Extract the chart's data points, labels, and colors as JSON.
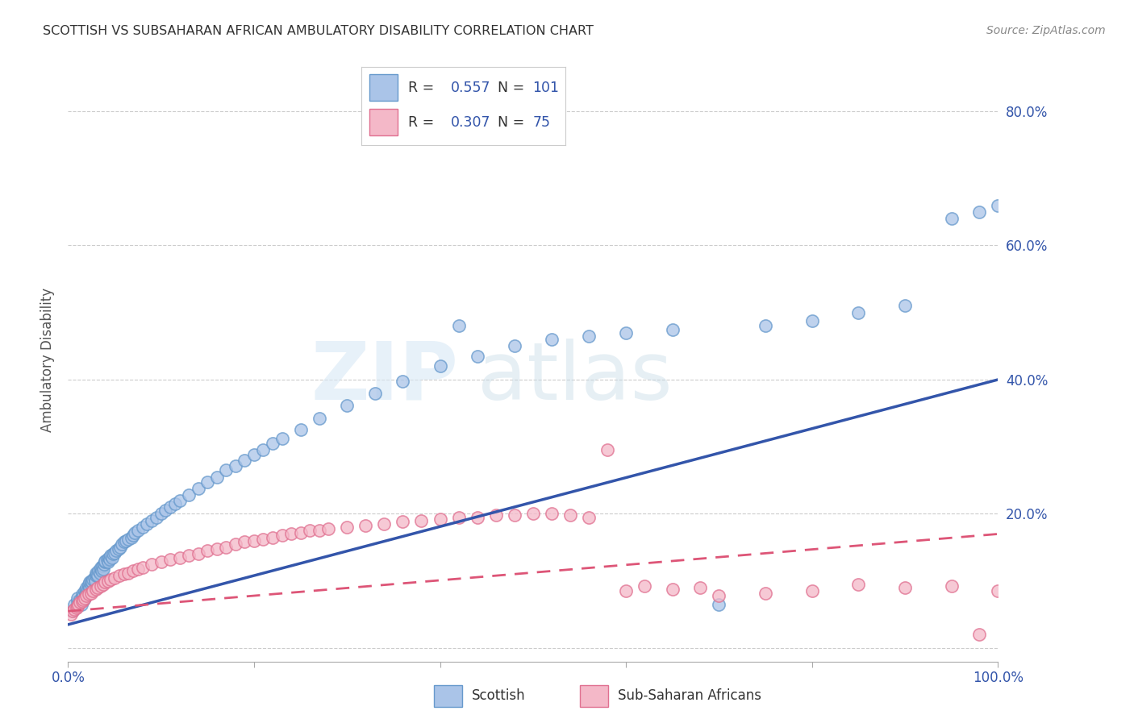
{
  "title": "SCOTTISH VS SUBSAHARAN AFRICAN AMBULATORY DISABILITY CORRELATION CHART",
  "source": "Source: ZipAtlas.com",
  "ylabel": "Ambulatory Disability",
  "xlim": [
    0,
    1.0
  ],
  "ylim": [
    -0.02,
    0.88
  ],
  "x_ticks": [
    0.0,
    0.2,
    0.4,
    0.6,
    0.8,
    1.0
  ],
  "x_tick_labels": [
    "0.0%",
    "",
    "",
    "",
    "",
    "100.0%"
  ],
  "y_ticks": [
    0.0,
    0.2,
    0.4,
    0.6,
    0.8
  ],
  "y_tick_labels": [
    "",
    "20.0%",
    "40.0%",
    "60.0%",
    "80.0%"
  ],
  "scottish_color": "#aac4e8",
  "scottish_edge": "#6699cc",
  "subsaharan_color": "#f4b8c8",
  "subsaharan_edge": "#e07090",
  "line_blue": "#3355aa",
  "line_pink": "#dd5577",
  "R_scottish": "0.557",
  "N_scottish": "101",
  "R_subsaharan": "0.307",
  "N_subsaharan": "75",
  "legend_text_color": "#3355aa",
  "label_color": "#3355aa",
  "scottish_line_x": [
    0.0,
    1.0
  ],
  "scottish_line_y": [
    0.035,
    0.4
  ],
  "subsaharan_line_x": [
    0.0,
    1.0
  ],
  "subsaharan_line_y": [
    0.055,
    0.17
  ],
  "watermark_zip": "ZIP",
  "watermark_atlas": "atlas",
  "scottish_x": [
    0.005,
    0.007,
    0.008,
    0.01,
    0.01,
    0.012,
    0.013,
    0.014,
    0.015,
    0.015,
    0.016,
    0.017,
    0.018,
    0.019,
    0.02,
    0.02,
    0.021,
    0.022,
    0.022,
    0.023,
    0.023,
    0.025,
    0.025,
    0.026,
    0.027,
    0.028,
    0.029,
    0.03,
    0.03,
    0.031,
    0.032,
    0.033,
    0.034,
    0.035,
    0.035,
    0.036,
    0.037,
    0.038,
    0.039,
    0.04,
    0.04,
    0.042,
    0.043,
    0.044,
    0.045,
    0.046,
    0.047,
    0.048,
    0.05,
    0.052,
    0.054,
    0.056,
    0.058,
    0.06,
    0.062,
    0.065,
    0.068,
    0.07,
    0.072,
    0.075,
    0.08,
    0.085,
    0.09,
    0.095,
    0.1,
    0.105,
    0.11,
    0.115,
    0.12,
    0.13,
    0.14,
    0.15,
    0.16,
    0.17,
    0.18,
    0.19,
    0.2,
    0.21,
    0.22,
    0.23,
    0.25,
    0.27,
    0.3,
    0.33,
    0.36,
    0.4,
    0.44,
    0.48,
    0.52,
    0.56,
    0.6,
    0.65,
    0.7,
    0.75,
    0.8,
    0.85,
    0.9,
    0.95,
    0.98,
    1.0,
    0.42
  ],
  "scottish_y": [
    0.055,
    0.065,
    0.06,
    0.07,
    0.075,
    0.068,
    0.072,
    0.065,
    0.08,
    0.075,
    0.078,
    0.072,
    0.085,
    0.08,
    0.085,
    0.09,
    0.088,
    0.092,
    0.095,
    0.09,
    0.098,
    0.095,
    0.1,
    0.098,
    0.102,
    0.105,
    0.1,
    0.108,
    0.112,
    0.11,
    0.108,
    0.115,
    0.112,
    0.118,
    0.12,
    0.115,
    0.122,
    0.118,
    0.125,
    0.128,
    0.13,
    0.132,
    0.128,
    0.135,
    0.132,
    0.138,
    0.135,
    0.14,
    0.142,
    0.145,
    0.148,
    0.15,
    0.155,
    0.158,
    0.16,
    0.162,
    0.165,
    0.168,
    0.172,
    0.175,
    0.18,
    0.185,
    0.19,
    0.195,
    0.2,
    0.205,
    0.21,
    0.215,
    0.22,
    0.228,
    0.238,
    0.248,
    0.255,
    0.265,
    0.272,
    0.28,
    0.288,
    0.295,
    0.305,
    0.312,
    0.325,
    0.342,
    0.362,
    0.38,
    0.398,
    0.42,
    0.435,
    0.45,
    0.46,
    0.465,
    0.47,
    0.475,
    0.065,
    0.48,
    0.488,
    0.5,
    0.51,
    0.64,
    0.65,
    0.66,
    0.48
  ],
  "subsaharan_x": [
    0.003,
    0.005,
    0.007,
    0.009,
    0.01,
    0.011,
    0.013,
    0.015,
    0.016,
    0.018,
    0.02,
    0.022,
    0.025,
    0.027,
    0.03,
    0.032,
    0.035,
    0.038,
    0.04,
    0.043,
    0.046,
    0.05,
    0.055,
    0.06,
    0.065,
    0.07,
    0.075,
    0.08,
    0.09,
    0.1,
    0.11,
    0.12,
    0.13,
    0.14,
    0.15,
    0.16,
    0.17,
    0.18,
    0.19,
    0.2,
    0.21,
    0.22,
    0.23,
    0.24,
    0.25,
    0.26,
    0.27,
    0.28,
    0.3,
    0.32,
    0.34,
    0.36,
    0.38,
    0.4,
    0.42,
    0.44,
    0.46,
    0.48,
    0.5,
    0.52,
    0.54,
    0.56,
    0.58,
    0.6,
    0.62,
    0.65,
    0.68,
    0.7,
    0.75,
    0.8,
    0.85,
    0.9,
    0.95,
    0.98,
    1.0
  ],
  "subsaharan_y": [
    0.05,
    0.055,
    0.058,
    0.06,
    0.062,
    0.065,
    0.068,
    0.07,
    0.072,
    0.075,
    0.078,
    0.08,
    0.082,
    0.085,
    0.088,
    0.09,
    0.092,
    0.095,
    0.098,
    0.1,
    0.102,
    0.105,
    0.108,
    0.11,
    0.112,
    0.115,
    0.118,
    0.12,
    0.125,
    0.128,
    0.132,
    0.135,
    0.138,
    0.14,
    0.145,
    0.148,
    0.15,
    0.155,
    0.158,
    0.16,
    0.162,
    0.165,
    0.168,
    0.17,
    0.172,
    0.175,
    0.175,
    0.178,
    0.18,
    0.182,
    0.185,
    0.188,
    0.19,
    0.192,
    0.195,
    0.195,
    0.198,
    0.198,
    0.2,
    0.2,
    0.198,
    0.195,
    0.295,
    0.085,
    0.092,
    0.088,
    0.09,
    0.078,
    0.082,
    0.085,
    0.095,
    0.09,
    0.092,
    0.02,
    0.085
  ]
}
